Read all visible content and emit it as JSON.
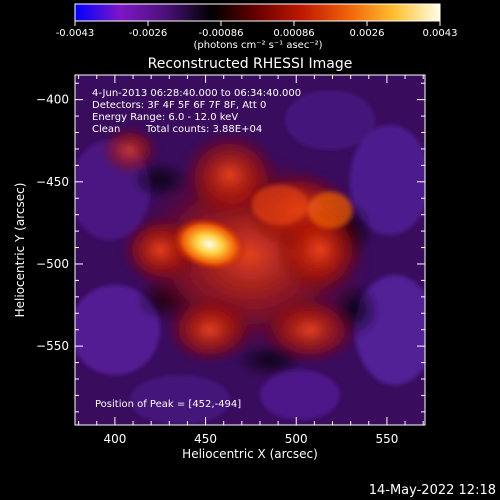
{
  "colorbar": {
    "ticks": [
      "-0.0043",
      "-0.0026",
      "-0.00086",
      "0.00086",
      "0.0026",
      "0.0043"
    ],
    "unit_label": "(photons cm⁻² s⁻¹ asec⁻²)",
    "palette": [
      "#0000ff",
      "#7e17c4",
      "#4a1078",
      "#000000",
      "#6a0000",
      "#c01a00",
      "#f0620a",
      "#ffc030",
      "#ffffe8"
    ]
  },
  "chart_data": {
    "type": "heatmap",
    "title": "Reconstructed RHESSI Image",
    "xlabel": "Heliocentric X (arcsec)",
    "ylabel": "Heliocentric Y (arcsec)",
    "xlim": [
      378,
      571
    ],
    "ylim": [
      -598,
      -385
    ],
    "x_ticks": [
      400,
      450,
      500,
      550
    ],
    "y_ticks": [
      -400,
      -450,
      -500,
      -550
    ],
    "peak": [
      452,
      -494
    ],
    "grid": false,
    "annotations": {
      "time_range": "4-Jun-2013 06:28:40.000 to 06:34:40.000",
      "detectors": "Detectors: 3F 4F 5F 6F 7F 8F, Att 0",
      "energy": "Energy Range: 6.0 - 12.0 keV",
      "method": "Clean",
      "counts": "Total counts: 3.88E+04",
      "peak_text": "Position of Peak = [452,-494]"
    }
  },
  "footer": {
    "timestamp": "14-May-2022 12:18"
  }
}
